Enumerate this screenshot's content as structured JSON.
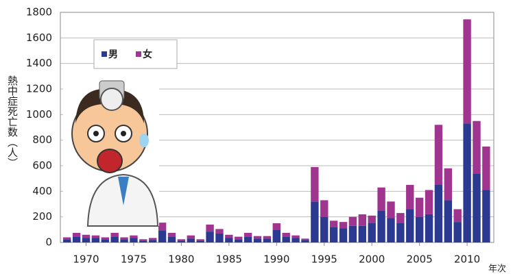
{
  "chart_data": {
    "type": "stacked-bar",
    "y_label": "熱中症死亡数（人）",
    "x_label": "年次",
    "x": [
      1968,
      1969,
      1970,
      1971,
      1972,
      1973,
      1974,
      1975,
      1976,
      1977,
      1978,
      1979,
      1980,
      1981,
      1982,
      1983,
      1984,
      1985,
      1986,
      1987,
      1988,
      1989,
      1990,
      1991,
      1992,
      1993,
      1994,
      1995,
      1996,
      1997,
      1998,
      1999,
      2000,
      2001,
      2002,
      2003,
      2004,
      2005,
      2006,
      2007,
      2008,
      2009,
      2010,
      2011,
      2012
    ],
    "series": [
      {
        "name": "男",
        "color": "#2b3990",
        "values": [
          25,
          45,
          35,
          35,
          25,
          45,
          25,
          35,
          15,
          20,
          95,
          45,
          15,
          30,
          15,
          85,
          70,
          35,
          25,
          45,
          30,
          30,
          100,
          45,
          35,
          20,
          320,
          200,
          120,
          110,
          130,
          130,
          150,
          250,
          190,
          150,
          260,
          200,
          220,
          450,
          330,
          160,
          930,
          540,
          410
        ]
      },
      {
        "name": "女",
        "color": "#a0358f",
        "values": [
          15,
          30,
          25,
          20,
          15,
          30,
          15,
          20,
          10,
          15,
          60,
          30,
          10,
          25,
          10,
          55,
          35,
          25,
          20,
          30,
          20,
          20,
          50,
          30,
          20,
          10,
          270,
          130,
          50,
          50,
          70,
          90,
          60,
          180,
          130,
          80,
          190,
          150,
          190,
          470,
          250,
          100,
          815,
          410,
          340
        ]
      }
    ],
    "xlim": [
      1967.3,
      2012.8
    ],
    "xticks": [
      1970,
      1975,
      1980,
      1985,
      1990,
      1995,
      2000,
      2005,
      2010
    ],
    "ylim": [
      0,
      1800
    ],
    "yticks": [
      0,
      200,
      400,
      600,
      800,
      1000,
      1200,
      1400,
      1600,
      1800
    ],
    "grid": true
  }
}
